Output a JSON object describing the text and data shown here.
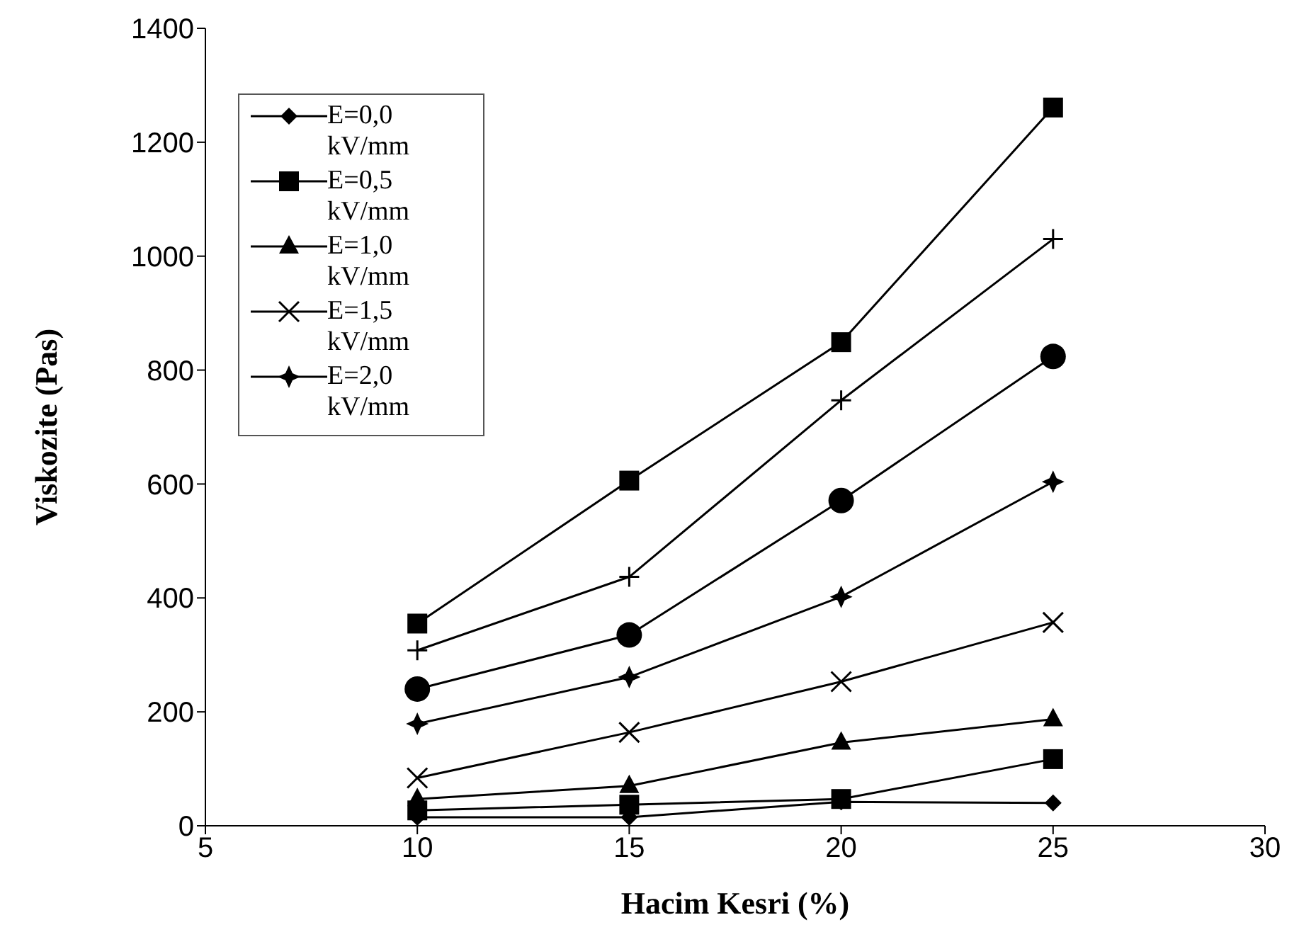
{
  "chart_data": {
    "type": "line",
    "xlabel": "Hacim Kesri (%)",
    "ylabel": "Viskozite (Pas)",
    "x": [
      10,
      15,
      20,
      25
    ],
    "xlim": [
      5,
      30
    ],
    "xticks": [
      5,
      10,
      15,
      20,
      25,
      30
    ],
    "ylim": [
      0,
      1400
    ],
    "yticks": [
      0,
      200,
      400,
      600,
      800,
      1000,
      1200,
      1400
    ],
    "grid": false,
    "legend": "top left",
    "line_style": "solid",
    "series": [
      {
        "name": "E=0,0 kV/mm",
        "color": "#000000",
        "marker": "diamond",
        "values": [
          15,
          15,
          42,
          40
        ]
      },
      {
        "name": "E=0,5 kV/mm",
        "color": "#000000",
        "marker": "square",
        "values": [
          27,
          37,
          47,
          117
        ]
      },
      {
        "name": "E=1,0 kV/mm",
        "color": "#000000",
        "marker": "triangle",
        "values": [
          47,
          70,
          146,
          187
        ]
      },
      {
        "name": "E=1,5 kV/mm",
        "color": "#000000",
        "marker": "cross",
        "values": [
          84,
          164,
          253,
          357
        ]
      },
      {
        "name": "E=2,0 kV/mm",
        "color": "#000000",
        "marker": "star",
        "values": [
          179,
          261,
          402,
          604
        ]
      },
      {
        "color": "#000000",
        "marker": "circle",
        "values": [
          240,
          335,
          571,
          824
        ]
      },
      {
        "color": "#000000",
        "marker": "plus",
        "values": [
          308,
          437,
          747,
          1030
        ]
      },
      {
        "color": "#000000",
        "marker": "square",
        "values": [
          355,
          606,
          849,
          1261
        ]
      }
    ]
  }
}
